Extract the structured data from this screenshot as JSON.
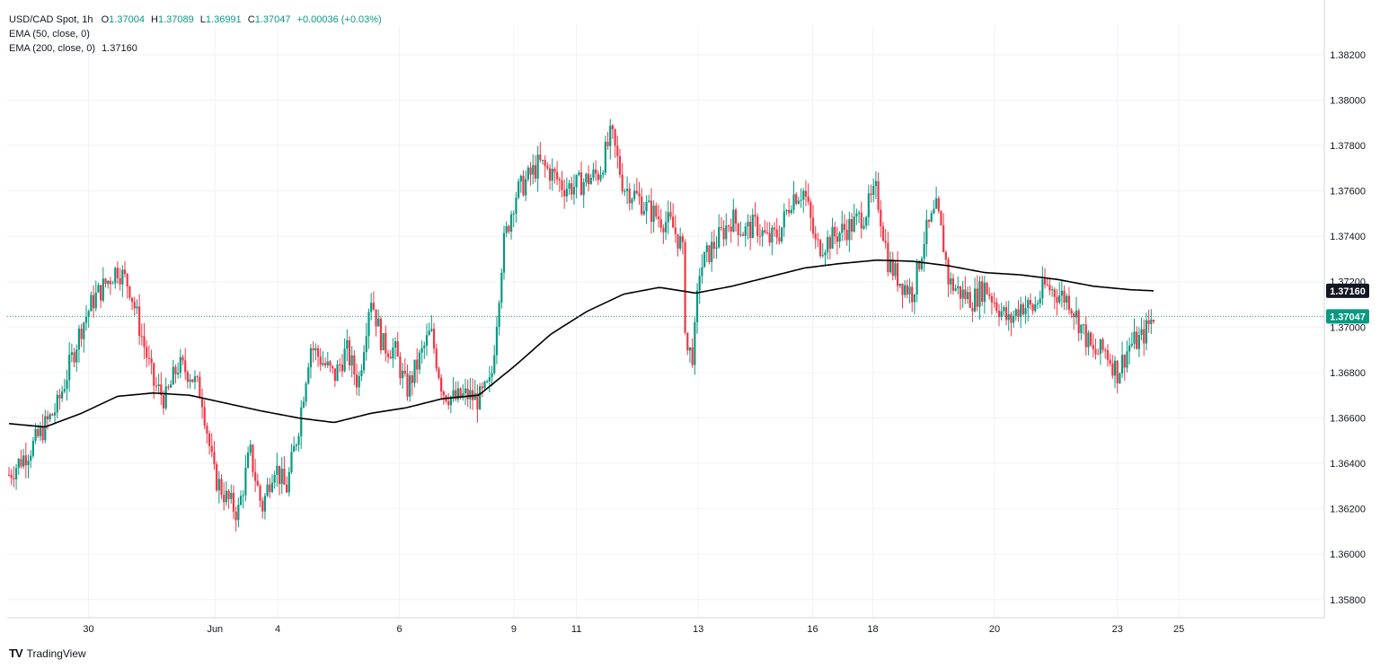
{
  "header": {
    "symbol": "USD/CAD Spot, 1h",
    "ohlc": {
      "o_label": "O",
      "o": "1.37004",
      "h_label": "H",
      "h": "1.37089",
      "l_label": "L",
      "l": "1.36991",
      "c_label": "C",
      "c": "1.37047",
      "change": "+0.00036 (+0.03%)"
    },
    "ema50_label": "EMA (50, close, 0)",
    "ema200_label": "EMA (200, close, 0)",
    "ema200_value": "1.37160"
  },
  "brand": {
    "logo": "TV",
    "name": "TradingView"
  },
  "colors": {
    "up": "#089981",
    "down": "#F23645",
    "ema": "#000000",
    "grid": "#F0F3FA",
    "price_tag": "#089981",
    "ema_tag": "#131722"
  },
  "chart_data": {
    "type": "candlestick",
    "title": "USD/CAD Spot, 1h",
    "y_ticks": [
      "1.35800",
      "1.36000",
      "1.36200",
      "1.36400",
      "1.36600",
      "1.36800",
      "1.37000",
      "1.37200",
      "1.37400",
      "1.37600",
      "1.37800",
      "1.38000",
      "1.38200"
    ],
    "ylim": [
      1.3572,
      1.3833
    ],
    "x_ticks": [
      "30",
      "Jun",
      "4",
      "6",
      "9",
      "11",
      "13",
      "16",
      "18",
      "20",
      "23",
      "25"
    ],
    "close_path": [
      {
        "t": 0,
        "v": 1.3635
      },
      {
        "t": 2,
        "v": 1.3648
      },
      {
        "t": 4,
        "v": 1.3665
      },
      {
        "t": 6,
        "v": 1.37
      },
      {
        "t": 7,
        "v": 1.3712
      },
      {
        "t": 9,
        "v": 1.3726
      },
      {
        "t": 10,
        "v": 1.3718
      },
      {
        "t": 12,
        "v": 1.3675
      },
      {
        "t": 13,
        "v": 1.3668
      },
      {
        "t": 14,
        "v": 1.3683
      },
      {
        "t": 15,
        "v": 1.368
      },
      {
        "t": 16,
        "v": 1.367
      },
      {
        "t": 17,
        "v": 1.3635
      },
      {
        "t": 18,
        "v": 1.3625
      },
      {
        "t": 19,
        "v": 1.3618
      },
      {
        "t": 20,
        "v": 1.3645
      },
      {
        "t": 21,
        "v": 1.362
      },
      {
        "t": 22,
        "v": 1.364
      },
      {
        "t": 23,
        "v": 1.3628
      },
      {
        "t": 24,
        "v": 1.3655
      },
      {
        "t": 25,
        "v": 1.3692
      },
      {
        "t": 26,
        "v": 1.3685
      },
      {
        "t": 27,
        "v": 1.3678
      },
      {
        "t": 28,
        "v": 1.369
      },
      {
        "t": 29,
        "v": 1.3675
      },
      {
        "t": 30,
        "v": 1.3715
      },
      {
        "t": 31,
        "v": 1.3692
      },
      {
        "t": 32,
        "v": 1.369
      },
      {
        "t": 33,
        "v": 1.3672
      },
      {
        "t": 34,
        "v": 1.3685
      },
      {
        "t": 35,
        "v": 1.3698
      },
      {
        "t": 36,
        "v": 1.3672
      },
      {
        "t": 37,
        "v": 1.3668
      },
      {
        "t": 38,
        "v": 1.367
      },
      {
        "t": 39,
        "v": 1.3668
      },
      {
        "t": 40,
        "v": 1.3675
      },
      {
        "t": 41,
        "v": 1.3735
      },
      {
        "t": 42,
        "v": 1.3758
      },
      {
        "t": 43,
        "v": 1.3765
      },
      {
        "t": 44,
        "v": 1.3772
      },
      {
        "t": 45,
        "v": 1.3768
      },
      {
        "t": 46,
        "v": 1.3762
      },
      {
        "t": 47,
        "v": 1.3762
      },
      {
        "t": 48,
        "v": 1.3765
      },
      {
        "t": 49,
        "v": 1.3768
      },
      {
        "t": 50,
        "v": 1.3785
      },
      {
        "t": 51,
        "v": 1.3762
      },
      {
        "t": 52,
        "v": 1.3758
      },
      {
        "t": 53,
        "v": 1.3752
      },
      {
        "t": 54,
        "v": 1.3748
      },
      {
        "t": 55,
        "v": 1.3745
      },
      {
        "t": 55.9,
        "v": 1.3735
      },
      {
        "t": 56.2,
        "v": 1.369
      },
      {
        "t": 56.8,
        "v": 1.3688
      },
      {
        "t": 57.3,
        "v": 1.3725
      },
      {
        "t": 58,
        "v": 1.3732
      },
      {
        "t": 59,
        "v": 1.374
      },
      {
        "t": 60,
        "v": 1.3748
      },
      {
        "t": 61,
        "v": 1.3742
      },
      {
        "t": 62,
        "v": 1.3745
      },
      {
        "t": 63,
        "v": 1.3738
      },
      {
        "t": 64,
        "v": 1.3742
      },
      {
        "t": 65,
        "v": 1.3758
      },
      {
        "t": 66,
        "v": 1.376
      },
      {
        "t": 67,
        "v": 1.3735
      },
      {
        "t": 68,
        "v": 1.3738
      },
      {
        "t": 69,
        "v": 1.3742
      },
      {
        "t": 70,
        "v": 1.3745
      },
      {
        "t": 71,
        "v": 1.375
      },
      {
        "t": 72,
        "v": 1.376
      },
      {
        "t": 73,
        "v": 1.3728
      },
      {
        "t": 74,
        "v": 1.372
      },
      {
        "t": 75,
        "v": 1.3715
      },
      {
        "t": 76,
        "v": 1.374
      },
      {
        "t": 77,
        "v": 1.3752
      },
      {
        "t": 77.6,
        "v": 1.3735
      },
      {
        "t": 78,
        "v": 1.372
      },
      {
        "t": 79,
        "v": 1.3715
      },
      {
        "t": 80,
        "v": 1.3712
      },
      {
        "t": 81,
        "v": 1.3718
      },
      {
        "t": 82,
        "v": 1.371
      },
      {
        "t": 83,
        "v": 1.3702
      },
      {
        "t": 84,
        "v": 1.371
      },
      {
        "t": 85,
        "v": 1.3708
      },
      {
        "t": 86,
        "v": 1.3718
      },
      {
        "t": 87,
        "v": 1.3715
      },
      {
        "t": 88,
        "v": 1.3712
      },
      {
        "t": 89,
        "v": 1.37
      },
      {
        "t": 90,
        "v": 1.3688
      },
      {
        "t": 91,
        "v": 1.369
      },
      {
        "t": 92,
        "v": 1.368
      },
      {
        "t": 93,
        "v": 1.3692
      },
      {
        "t": 94,
        "v": 1.3695
      },
      {
        "t": 95,
        "v": 1.3705
      }
    ],
    "ema200_path": [
      {
        "t": 0,
        "v": 1.36575
      },
      {
        "t": 3,
        "v": 1.3656
      },
      {
        "t": 6,
        "v": 1.3662
      },
      {
        "t": 9,
        "v": 1.36695
      },
      {
        "t": 12,
        "v": 1.3671
      },
      {
        "t": 15,
        "v": 1.367
      },
      {
        "t": 18,
        "v": 1.36665
      },
      {
        "t": 21,
        "v": 1.3663
      },
      {
        "t": 24,
        "v": 1.366
      },
      {
        "t": 27,
        "v": 1.3658
      },
      {
        "t": 30,
        "v": 1.3662
      },
      {
        "t": 33,
        "v": 1.36645
      },
      {
        "t": 36,
        "v": 1.36685
      },
      {
        "t": 39,
        "v": 1.367
      },
      {
        "t": 42,
        "v": 1.3683
      },
      {
        "t": 45,
        "v": 1.3697
      },
      {
        "t": 48,
        "v": 1.3707
      },
      {
        "t": 51,
        "v": 1.37145
      },
      {
        "t": 54,
        "v": 1.37175
      },
      {
        "t": 57,
        "v": 1.3715
      },
      {
        "t": 60,
        "v": 1.3718
      },
      {
        "t": 63,
        "v": 1.3722
      },
      {
        "t": 66,
        "v": 1.3726
      },
      {
        "t": 69,
        "v": 1.3728
      },
      {
        "t": 72,
        "v": 1.37295
      },
      {
        "t": 75,
        "v": 1.3729
      },
      {
        "t": 78,
        "v": 1.3727
      },
      {
        "t": 81,
        "v": 1.3724
      },
      {
        "t": 84,
        "v": 1.3723
      },
      {
        "t": 87,
        "v": 1.3721
      },
      {
        "t": 90,
        "v": 1.3718
      },
      {
        "t": 93,
        "v": 1.37165
      },
      {
        "t": 95,
        "v": 1.3716
      }
    ],
    "last_price": "1.37047",
    "last_price_value": 1.37047,
    "ema_last": "1.37160",
    "ema_last_value": 1.3716
  }
}
